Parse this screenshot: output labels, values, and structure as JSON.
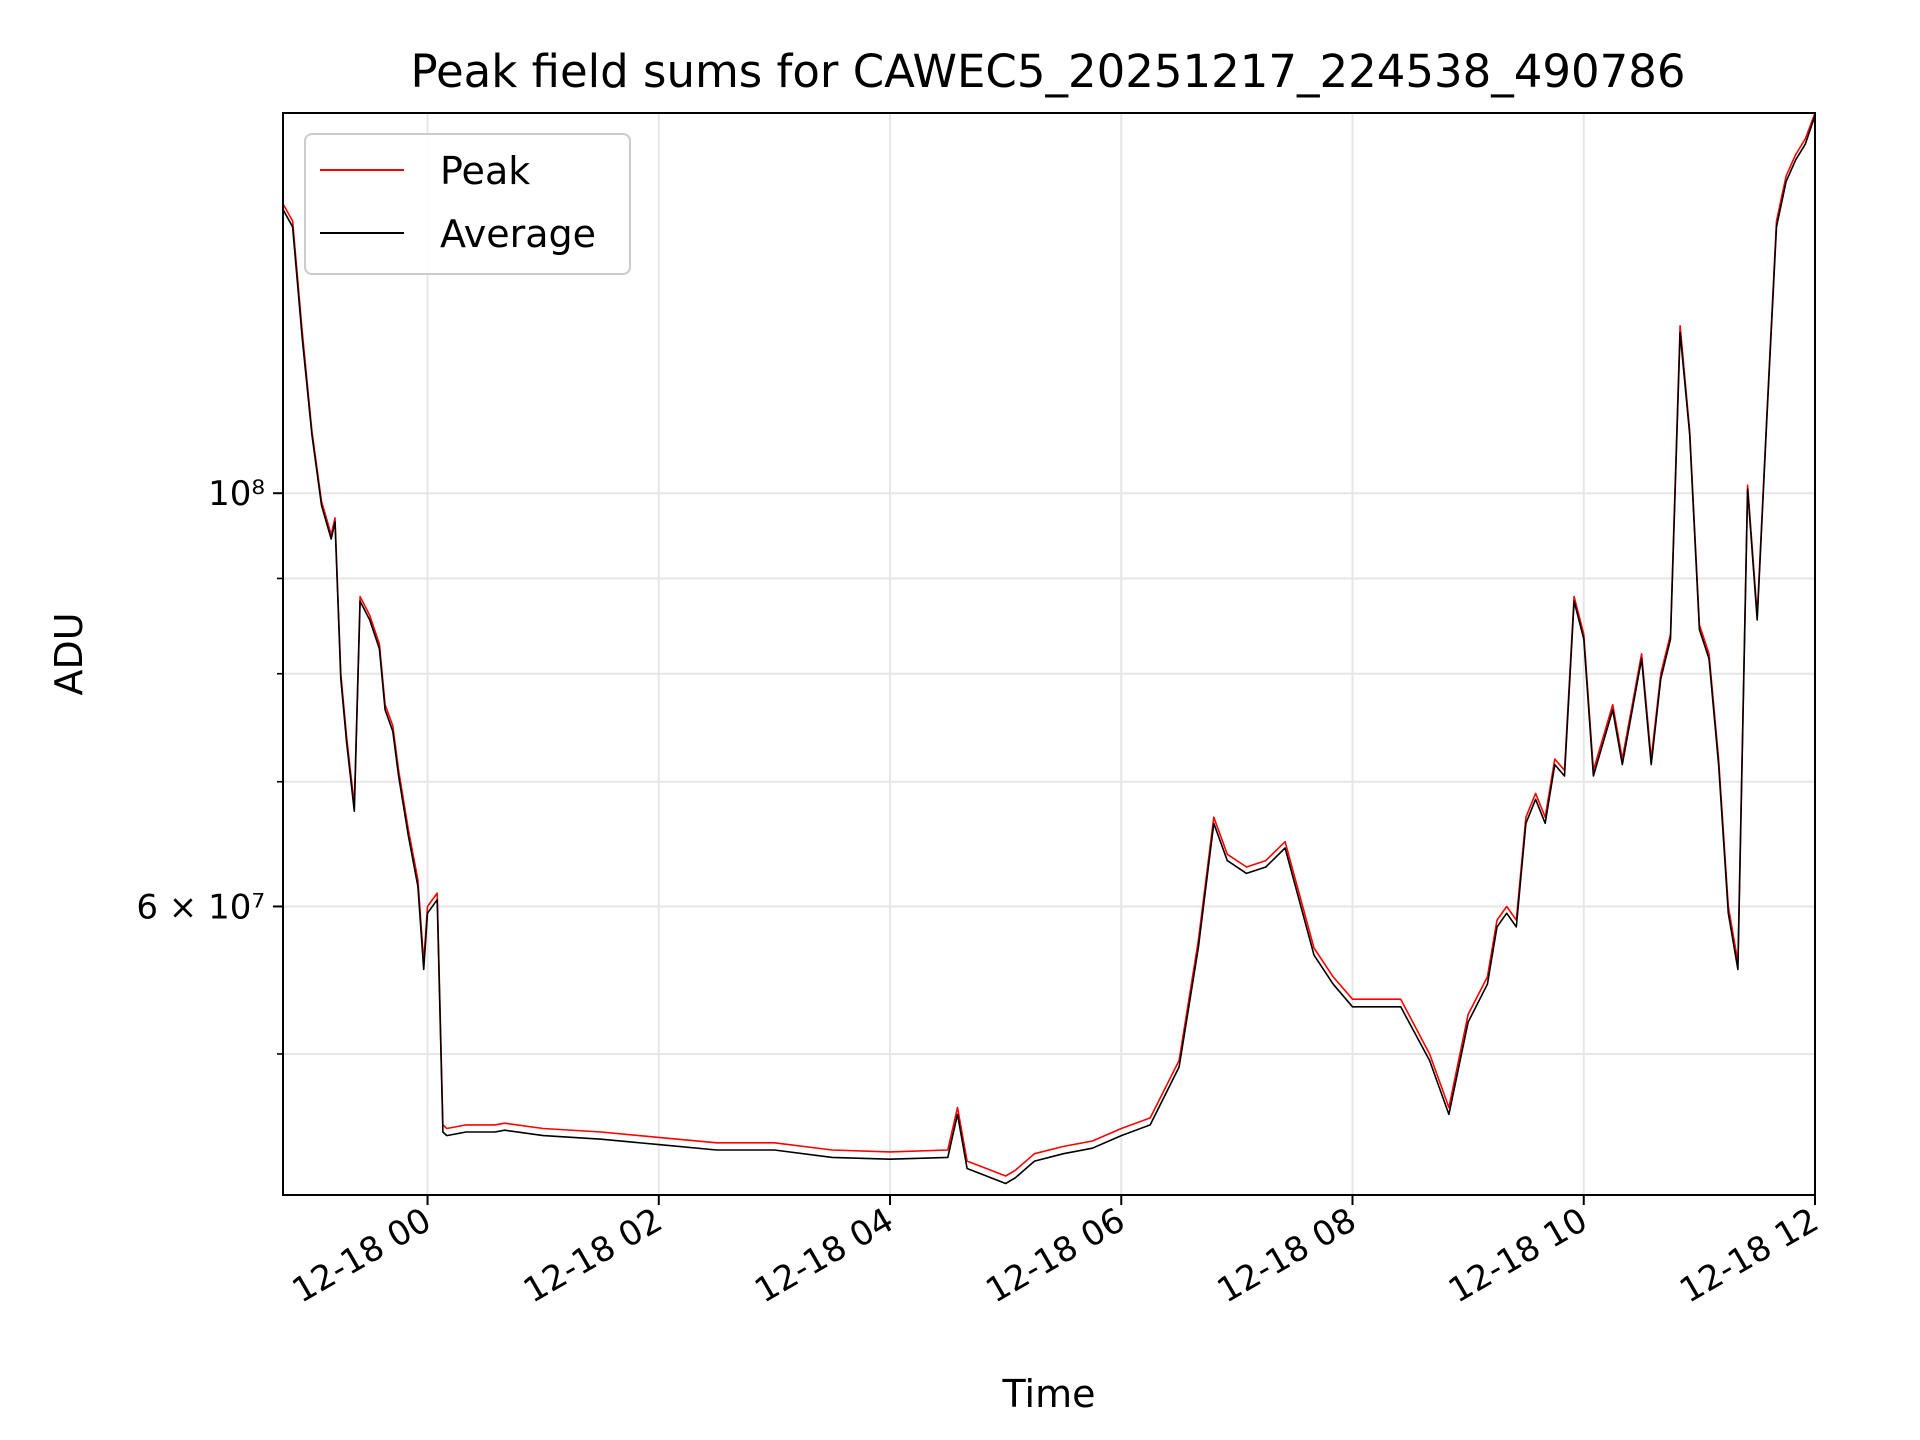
{
  "chart_data": {
    "type": "line",
    "title": "Peak field sums for CAWEC5_20251217_224538_490786",
    "xlabel": "Time",
    "ylabel": "ADU",
    "yscale": "log",
    "xlim": [
      "2025-12-17 22:45",
      "2025-12-18 12:00"
    ],
    "ylim": [
      42000000,
      160000000
    ],
    "grid": true,
    "legend": {
      "placement": "top-left"
    },
    "x_ticks": [
      {
        "value": "2025-12-18 00:00",
        "label": "12-18 00"
      },
      {
        "value": "2025-12-18 02:00",
        "label": "12-18 02"
      },
      {
        "value": "2025-12-18 04:00",
        "label": "12-18 04"
      },
      {
        "value": "2025-12-18 06:00",
        "label": "12-18 06"
      },
      {
        "value": "2025-12-18 08:00",
        "label": "12-18 08"
      },
      {
        "value": "2025-12-18 10:00",
        "label": "12-18 10"
      },
      {
        "value": "2025-12-18 12:00",
        "label": "12-18 12"
      }
    ],
    "y_ticks_major": [
      {
        "value": 60000000,
        "label": "6 × 10⁷"
      },
      {
        "value": 100000000,
        "label": "10⁸"
      }
    ],
    "y_ticks_minor": [
      50000000,
      70000000,
      80000000,
      90000000
    ],
    "x": [
      "2025-12-17 22:45",
      "2025-12-17 22:50",
      "2025-12-17 22:55",
      "2025-12-17 23:00",
      "2025-12-17 23:05",
      "2025-12-17 23:10",
      "2025-12-17 23:12",
      "2025-12-17 23:15",
      "2025-12-17 23:18",
      "2025-12-17 23:22",
      "2025-12-17 23:25",
      "2025-12-17 23:30",
      "2025-12-17 23:35",
      "2025-12-17 23:38",
      "2025-12-17 23:42",
      "2025-12-17 23:45",
      "2025-12-17 23:50",
      "2025-12-17 23:55",
      "2025-12-17 23:58",
      "2025-12-18 00:00",
      "2025-12-18 00:05",
      "2025-12-18 00:08",
      "2025-12-18 00:10",
      "2025-12-18 00:20",
      "2025-12-18 00:35",
      "2025-12-18 00:40",
      "2025-12-18 01:00",
      "2025-12-18 01:30",
      "2025-12-18 02:00",
      "2025-12-18 02:30",
      "2025-12-18 03:00",
      "2025-12-18 03:30",
      "2025-12-18 04:00",
      "2025-12-18 04:30",
      "2025-12-18 04:35",
      "2025-12-18 04:40",
      "2025-12-18 04:50",
      "2025-12-18 05:00",
      "2025-12-18 05:05",
      "2025-12-18 05:15",
      "2025-12-18 05:30",
      "2025-12-18 05:45",
      "2025-12-18 06:00",
      "2025-12-18 06:15",
      "2025-12-18 06:30",
      "2025-12-18 06:40",
      "2025-12-18 06:48",
      "2025-12-18 06:55",
      "2025-12-18 07:05",
      "2025-12-18 07:15",
      "2025-12-18 07:25",
      "2025-12-18 07:40",
      "2025-12-18 07:50",
      "2025-12-18 08:00",
      "2025-12-18 08:15",
      "2025-12-18 08:25",
      "2025-12-18 08:40",
      "2025-12-18 08:50",
      "2025-12-18 09:00",
      "2025-12-18 09:10",
      "2025-12-18 09:15",
      "2025-12-18 09:20",
      "2025-12-18 09:25",
      "2025-12-18 09:30",
      "2025-12-18 09:35",
      "2025-12-18 09:40",
      "2025-12-18 09:45",
      "2025-12-18 09:50",
      "2025-12-18 09:55",
      "2025-12-18 10:00",
      "2025-12-18 10:05",
      "2025-12-18 10:15",
      "2025-12-18 10:20",
      "2025-12-18 10:30",
      "2025-12-18 10:35",
      "2025-12-18 10:40",
      "2025-12-18 10:45",
      "2025-12-18 10:50",
      "2025-12-18 10:55",
      "2025-12-18 11:00",
      "2025-12-18 11:05",
      "2025-12-18 11:10",
      "2025-12-18 11:15",
      "2025-12-18 11:20",
      "2025-12-18 11:25",
      "2025-12-18 11:30",
      "2025-12-18 11:35",
      "2025-12-18 11:40",
      "2025-12-18 11:45",
      "2025-12-18 11:50",
      "2025-12-18 11:55",
      "2025-12-18 12:00"
    ],
    "series": [
      {
        "name": "Peak",
        "color": "#ff0000",
        "values": [
          143000000,
          140000000,
          122000000,
          108000000,
          99000000,
          95000000,
          97000000,
          80000000,
          74000000,
          68000000,
          88000000,
          86000000,
          83000000,
          77000000,
          75000000,
          71000000,
          66000000,
          62000000,
          56000000,
          60000000,
          61000000,
          45800000,
          45600000,
          45800000,
          45800000,
          45900000,
          45600000,
          45400000,
          45100000,
          44800000,
          44800000,
          44400000,
          44300000,
          44400000,
          46800000,
          43800000,
          43400000,
          43000000,
          43300000,
          44200000,
          44600000,
          44900000,
          45600000,
          46200000,
          49600000,
          57500000,
          67000000,
          64000000,
          63000000,
          63500000,
          65000000,
          57000000,
          55000000,
          53500000,
          53500000,
          53500000,
          50000000,
          46800000,
          52500000,
          55000000,
          59000000,
          60000000,
          59000000,
          67000000,
          69000000,
          67000000,
          72000000,
          71000000,
          88000000,
          84000000,
          71000000,
          77000000,
          72000000,
          82000000,
          72000000,
          80000000,
          84000000,
          123000000,
          108000000,
          85000000,
          82000000,
          72000000,
          60000000,
          56000000,
          101000000,
          86000000,
          110000000,
          140000000,
          148000000,
          152000000,
          155000000,
          160000000
        ]
      },
      {
        "name": "Average",
        "color": "#000000",
        "values": [
          142000000,
          139000000,
          121000000,
          107500000,
          98500000,
          94500000,
          96500000,
          79500000,
          73500000,
          67500000,
          87500000,
          85500000,
          82500000,
          76500000,
          74500000,
          70500000,
          65500000,
          61500000,
          55500000,
          59500000,
          60500000,
          45400000,
          45200000,
          45400000,
          45400000,
          45500000,
          45200000,
          45000000,
          44700000,
          44400000,
          44400000,
          44000000,
          43900000,
          44000000,
          46400000,
          43400000,
          43000000,
          42600000,
          42900000,
          43800000,
          44200000,
          44500000,
          45200000,
          45800000,
          49200000,
          57000000,
          66500000,
          63500000,
          62500000,
          63000000,
          64500000,
          56500000,
          54500000,
          53000000,
          53000000,
          53000000,
          49600000,
          46400000,
          52000000,
          54500000,
          58500000,
          59500000,
          58500000,
          66500000,
          68500000,
          66500000,
          71500000,
          70500000,
          87500000,
          83500000,
          70500000,
          76500000,
          71500000,
          81500000,
          71500000,
          79500000,
          83500000,
          122000000,
          107500000,
          84500000,
          81500000,
          71500000,
          59500000,
          55500000,
          100500000,
          85500000,
          109500000,
          139000000,
          147000000,
          151000000,
          154000000,
          159500000
        ]
      }
    ]
  }
}
